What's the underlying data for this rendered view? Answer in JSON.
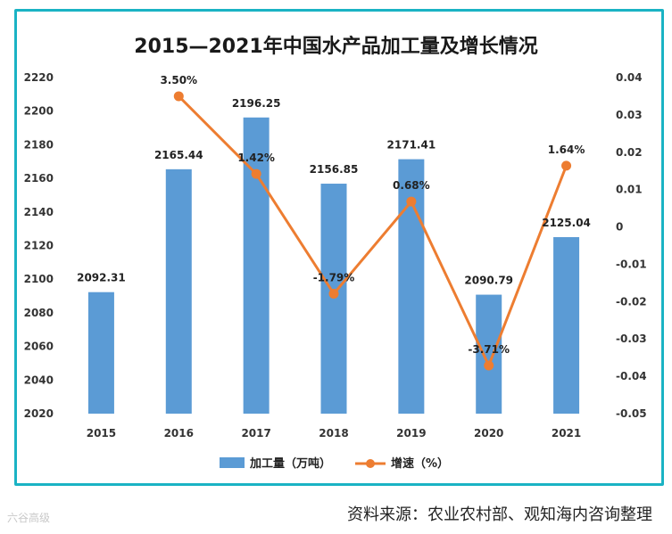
{
  "title": "2015—2021年中国水产品加工量及增长情况",
  "source": "资料来源：农业农村部、观知海内咨询整理",
  "watermark": "六谷高级",
  "colors": {
    "bar": "#5b9bd5",
    "line": "#ed7d31",
    "frame": "#1ab3c4"
  },
  "chart_data": {
    "type": "bar+line",
    "title": "2015—2021年中国水产品加工量及增长情况",
    "categories": [
      "2015",
      "2016",
      "2017",
      "2018",
      "2019",
      "2020",
      "2021"
    ],
    "series": [
      {
        "name": "加工量（万吨）",
        "type": "bar",
        "axis": "left",
        "values": [
          2092.31,
          2165.44,
          2196.25,
          2156.85,
          2171.41,
          2090.79,
          2125.04
        ],
        "labels": [
          "2092.31",
          "2165.44",
          "2196.25",
          "2156.85",
          "2171.41",
          "2090.79",
          "2125.04"
        ]
      },
      {
        "name": "增速（%）",
        "type": "line",
        "axis": "right",
        "values": [
          null,
          0.035,
          0.0142,
          -0.0179,
          0.0068,
          -0.0371,
          0.0164
        ],
        "labels": [
          "",
          "3.50%",
          "1.42%",
          "-1.79%",
          "0.68%",
          "-3.71%",
          "1.64%"
        ]
      }
    ],
    "y_left": {
      "min": 2020,
      "max": 2220,
      "ticks": [
        "2020",
        "2040",
        "2060",
        "2080",
        "2100",
        "2120",
        "2140",
        "2160",
        "2180",
        "2200",
        "2220"
      ]
    },
    "y_right": {
      "min": -0.05,
      "max": 0.04,
      "ticks": [
        "0.04",
        "0.03",
        "0.02",
        "0.01",
        "0",
        "-0.01",
        "-0.02",
        "-0.03",
        "-0.04",
        "-0.05"
      ],
      "tick_values": [
        0.04,
        0.03,
        0.02,
        0.01,
        0,
        -0.01,
        -0.02,
        -0.03,
        -0.04,
        -0.05
      ]
    },
    "legend": [
      "加工量（万吨）",
      "增速（%）"
    ],
    "legend_position": "bottom",
    "grid": false
  }
}
